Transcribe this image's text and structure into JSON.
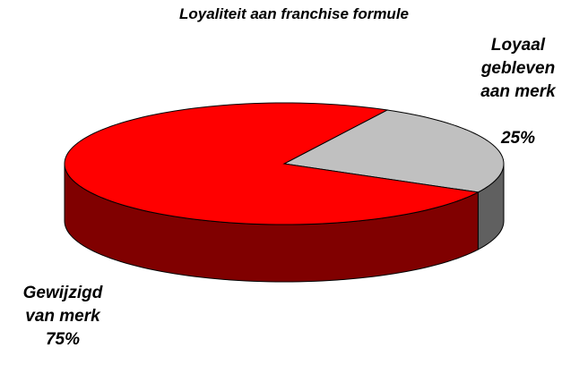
{
  "chart_data": {
    "type": "pie",
    "title": "Loyaliteit aan franchise formule",
    "categories": [
      "Loyaal gebleven aan merk",
      "Gewijzigd van merk"
    ],
    "values": [
      25,
      75
    ],
    "value_labels": [
      "25%",
      "75%"
    ],
    "colors": [
      "#c0c0c0",
      "#ff0000"
    ],
    "side_colors": [
      "#606060",
      "#800000"
    ]
  }
}
